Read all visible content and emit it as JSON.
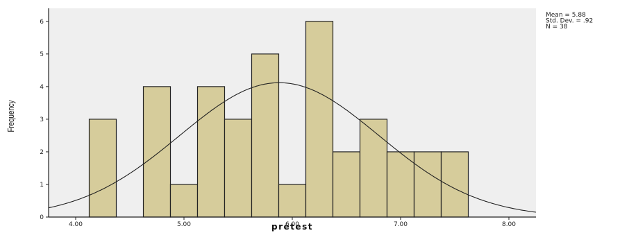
{
  "chart_data": {
    "type": "bar",
    "xlabel": "pretest",
    "ylabel": "Frequency",
    "x_ticks": [
      "4.00",
      "5.00",
      "6.00",
      "7.00",
      "8.00"
    ],
    "x_tick_values": [
      4,
      5,
      6,
      7,
      8
    ],
    "y_ticks": [
      "0",
      "1",
      "2",
      "3",
      "4",
      "5",
      "6"
    ],
    "xlim": [
      3.75,
      8.25
    ],
    "ylim": [
      0,
      6.4
    ],
    "bins": [
      {
        "start": 4.125,
        "end": 4.375,
        "count": 3
      },
      {
        "start": 4.375,
        "end": 4.625,
        "count": 0
      },
      {
        "start": 4.625,
        "end": 4.875,
        "count": 4
      },
      {
        "start": 4.875,
        "end": 5.125,
        "count": 1
      },
      {
        "start": 5.125,
        "end": 5.375,
        "count": 4
      },
      {
        "start": 5.375,
        "end": 5.625,
        "count": 3
      },
      {
        "start": 5.625,
        "end": 5.875,
        "count": 5
      },
      {
        "start": 5.875,
        "end": 6.125,
        "count": 1
      },
      {
        "start": 6.125,
        "end": 6.375,
        "count": 6
      },
      {
        "start": 6.375,
        "end": 6.625,
        "count": 2
      },
      {
        "start": 6.625,
        "end": 6.875,
        "count": 3
      },
      {
        "start": 6.875,
        "end": 7.125,
        "count": 2
      },
      {
        "start": 7.125,
        "end": 7.375,
        "count": 2
      },
      {
        "start": 7.375,
        "end": 7.625,
        "count": 2
      }
    ],
    "normal_curve": {
      "mean": 5.88,
      "sd": 0.92,
      "n": 38,
      "bin_width": 0.25
    },
    "stats_text": [
      "Mean = 5.88",
      "Std. Dev. = .92",
      "N = 38"
    ],
    "colors": {
      "plot_bg": "#efefef",
      "bar_fill": "#d6cc9b",
      "bar_stroke": "#222222",
      "curve": "#222222"
    },
    "grid": false
  }
}
